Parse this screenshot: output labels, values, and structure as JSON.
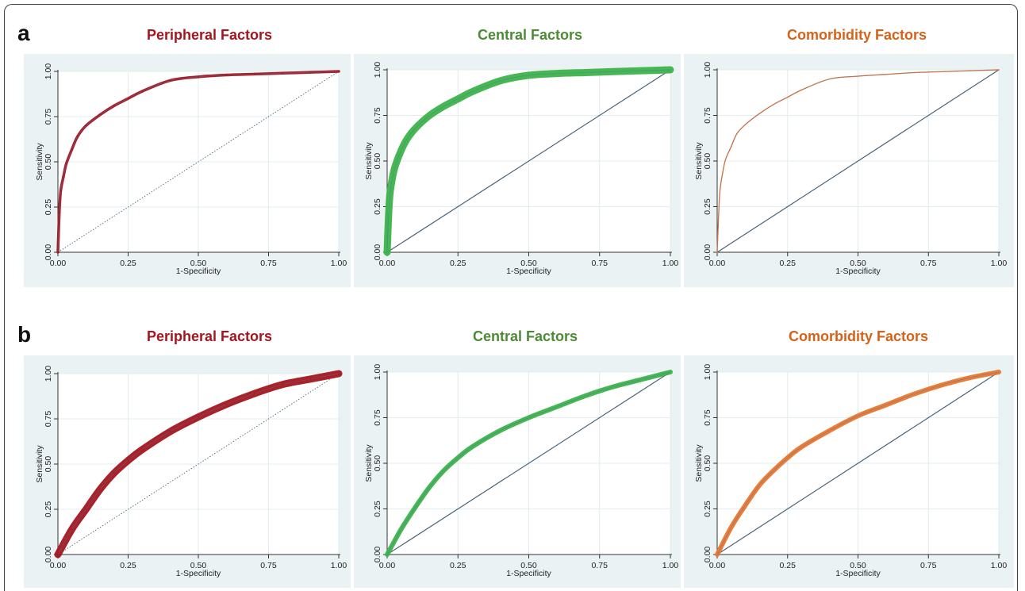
{
  "figure": {
    "panel_a_letter": "a",
    "panel_b_letter": "b"
  },
  "colors": {
    "peripheral": "#a3161f",
    "central": "#3cb34a",
    "comorbidity": "#e8772e",
    "reference_line": "#4a6378",
    "plot_background": "#eaf2f3",
    "title_peripheral": "#a3161f",
    "title_central": "#4c8a34",
    "title_comorbidity": "#d4621a"
  },
  "chart_data": [
    {
      "type": "line",
      "panel": "a",
      "title": "Peripheral Factors",
      "color_key": "peripheral",
      "xlabel": "1-Specificity",
      "ylabel": "Sensitivity",
      "xlim": [
        0,
        1
      ],
      "ylim": [
        0,
        1
      ],
      "xticks": [
        "0.00",
        "0.25",
        "0.50",
        "0.75",
        "1.00"
      ],
      "yticks": [
        "0.00",
        "0.25",
        "0.50",
        "0.75",
        "1.00"
      ],
      "band": "thin",
      "reference_diagonal": true,
      "reference_style": "dotted",
      "x": [
        0,
        0.005,
        0.01,
        0.02,
        0.03,
        0.05,
        0.07,
        0.1,
        0.15,
        0.2,
        0.25,
        0.3,
        0.4,
        0.5,
        0.6,
        0.7,
        0.8,
        0.9,
        1.0
      ],
      "y": [
        0,
        0.22,
        0.34,
        0.42,
        0.49,
        0.57,
        0.64,
        0.7,
        0.76,
        0.81,
        0.85,
        0.89,
        0.95,
        0.97,
        0.98,
        0.985,
        0.99,
        0.995,
        1.0
      ]
    },
    {
      "type": "line",
      "panel": "a",
      "title": "Central Factors",
      "color_key": "central",
      "xlabel": "1-Specificity",
      "ylabel": "Sensitivity",
      "xlim": [
        0,
        1
      ],
      "ylim": [
        0,
        1
      ],
      "xticks": [
        "0.00",
        "0.25",
        "0.50",
        "0.75",
        "1.00"
      ],
      "yticks": [
        "0.00",
        "0.25",
        "0.50",
        "0.75",
        "1.00"
      ],
      "band": "thick",
      "reference_diagonal": true,
      "reference_style": "solid",
      "x": [
        0,
        0.005,
        0.01,
        0.02,
        0.03,
        0.05,
        0.07,
        0.1,
        0.15,
        0.2,
        0.25,
        0.3,
        0.4,
        0.5,
        0.6,
        0.7,
        0.8,
        0.9,
        1.0
      ],
      "y": [
        0,
        0.2,
        0.32,
        0.42,
        0.48,
        0.56,
        0.62,
        0.68,
        0.75,
        0.8,
        0.84,
        0.88,
        0.94,
        0.97,
        0.98,
        0.985,
        0.99,
        0.995,
        1.0
      ]
    },
    {
      "type": "line",
      "panel": "a",
      "title": "Comorbidity Factors",
      "color_key": "comorbidity",
      "xlabel": "1-Specificity",
      "ylabel": "Sensitivity",
      "xlim": [
        0,
        1
      ],
      "ylim": [
        0,
        1
      ],
      "xticks": [
        "0.00",
        "0.25",
        "0.50",
        "0.75",
        "1.00"
      ],
      "yticks": [
        "0.00",
        "0.25",
        "0.50",
        "0.75",
        "1.00"
      ],
      "band": "none",
      "reference_diagonal": true,
      "reference_style": "solid",
      "x": [
        0,
        0.005,
        0.01,
        0.02,
        0.03,
        0.05,
        0.07,
        0.1,
        0.15,
        0.2,
        0.25,
        0.3,
        0.4,
        0.5,
        0.6,
        0.7,
        0.8,
        0.9,
        1.0
      ],
      "y": [
        0,
        0.2,
        0.34,
        0.44,
        0.51,
        0.58,
        0.65,
        0.7,
        0.76,
        0.81,
        0.85,
        0.89,
        0.95,
        0.965,
        0.975,
        0.985,
        0.99,
        0.995,
        1.0
      ]
    },
    {
      "type": "line",
      "panel": "b",
      "title": "Peripheral Factors",
      "color_key": "peripheral",
      "xlabel": "1-Specificity",
      "ylabel": "Sensitivity",
      "xlim": [
        0,
        1
      ],
      "ylim": [
        0,
        1
      ],
      "xticks": [
        "0.00",
        "0.25",
        "0.50",
        "0.75",
        "1.00"
      ],
      "yticks": [
        "0.00",
        "0.25",
        "0.50",
        "0.75",
        "1.00"
      ],
      "band": "thick",
      "reference_diagonal": true,
      "reference_style": "dotted",
      "x": [
        0,
        0.05,
        0.1,
        0.15,
        0.2,
        0.25,
        0.3,
        0.4,
        0.5,
        0.6,
        0.7,
        0.8,
        0.9,
        1.0
      ],
      "y": [
        0,
        0.14,
        0.25,
        0.36,
        0.45,
        0.52,
        0.58,
        0.68,
        0.76,
        0.83,
        0.89,
        0.94,
        0.97,
        1.0
      ]
    },
    {
      "type": "line",
      "panel": "b",
      "title": "Central Factors",
      "color_key": "central",
      "xlabel": "1-Specificity",
      "ylabel": "Sensitivity",
      "xlim": [
        0,
        1
      ],
      "ylim": [
        0,
        1
      ],
      "xticks": [
        "0.00",
        "0.25",
        "0.50",
        "0.75",
        "1.00"
      ],
      "yticks": [
        "0.00",
        "0.25",
        "0.50",
        "0.75",
        "1.00"
      ],
      "band": "medium",
      "reference_diagonal": true,
      "reference_style": "solid",
      "x": [
        0,
        0.05,
        0.1,
        0.15,
        0.2,
        0.25,
        0.3,
        0.4,
        0.5,
        0.6,
        0.7,
        0.8,
        0.9,
        1.0
      ],
      "y": [
        0,
        0.14,
        0.26,
        0.37,
        0.46,
        0.53,
        0.59,
        0.68,
        0.75,
        0.81,
        0.87,
        0.92,
        0.96,
        1.0
      ]
    },
    {
      "type": "line",
      "panel": "b",
      "title": "Comorbidity Factors",
      "color_key": "comorbidity",
      "xlabel": "1-Specificity",
      "ylabel": "Sensitivity",
      "xlim": [
        0,
        1
      ],
      "ylim": [
        0,
        1
      ],
      "xticks": [
        "0.00",
        "0.25",
        "0.50",
        "0.75",
        "1.00"
      ],
      "yticks": [
        "0.00",
        "0.25",
        "0.50",
        "0.75",
        "1.00"
      ],
      "band": "medium",
      "reference_diagonal": true,
      "reference_style": "solid",
      "x": [
        0,
        0.05,
        0.1,
        0.15,
        0.2,
        0.25,
        0.3,
        0.4,
        0.5,
        0.6,
        0.7,
        0.8,
        0.9,
        1.0
      ],
      "y": [
        0,
        0.15,
        0.27,
        0.38,
        0.46,
        0.53,
        0.59,
        0.68,
        0.76,
        0.82,
        0.88,
        0.93,
        0.97,
        1.0
      ]
    }
  ]
}
